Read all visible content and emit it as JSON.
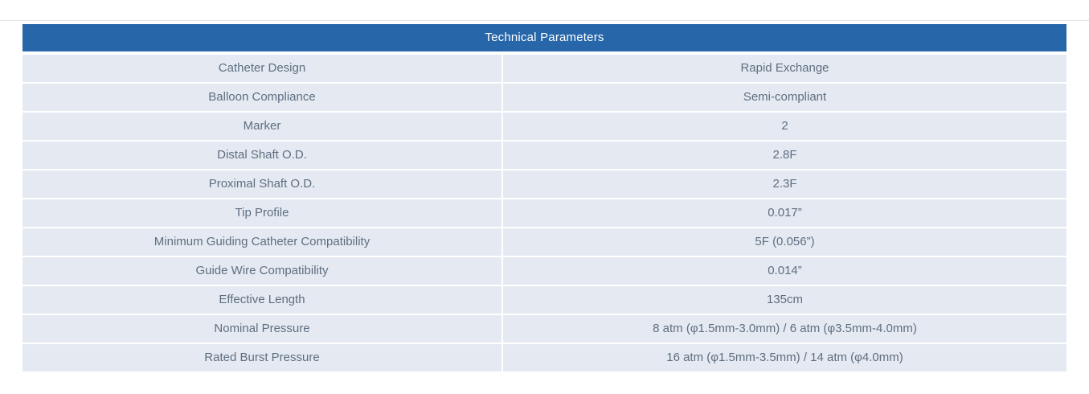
{
  "page": {
    "top_line_color": "#e5e6e8",
    "background_color": "#ffffff"
  },
  "table": {
    "title": "Technical Parameters",
    "header_bg": "#2666a9",
    "header_text_color": "#ffffff",
    "row_bg": "#e5eaf2",
    "cell_text_color": "#5e6e80",
    "columns": [
      "parameter",
      "value"
    ],
    "rows": [
      {
        "parameter": "Catheter Design",
        "value": "Rapid Exchange"
      },
      {
        "parameter": "Balloon Compliance",
        "value": "Semi-compliant"
      },
      {
        "parameter": "Marker",
        "value": "2"
      },
      {
        "parameter": "Distal Shaft O.D.",
        "value": "2.8F"
      },
      {
        "parameter": "Proximal Shaft O.D.",
        "value": "2.3F"
      },
      {
        "parameter": "Tip Profile",
        "value": "0.017”"
      },
      {
        "parameter": "Minimum Guiding Catheter Compatibility",
        "value": "5F (0.056”)"
      },
      {
        "parameter": "Guide Wire Compatibility",
        "value": "0.014”"
      },
      {
        "parameter": "Effective Length",
        "value": "135cm"
      },
      {
        "parameter": "Nominal Pressure",
        "value": "8 atm (φ1.5mm-3.0mm) / 6 atm (φ3.5mm-4.0mm)"
      },
      {
        "parameter": "Rated Burst Pressure",
        "value": "16 atm (φ1.5mm-3.5mm) / 14 atm (φ4.0mm)"
      }
    ]
  }
}
